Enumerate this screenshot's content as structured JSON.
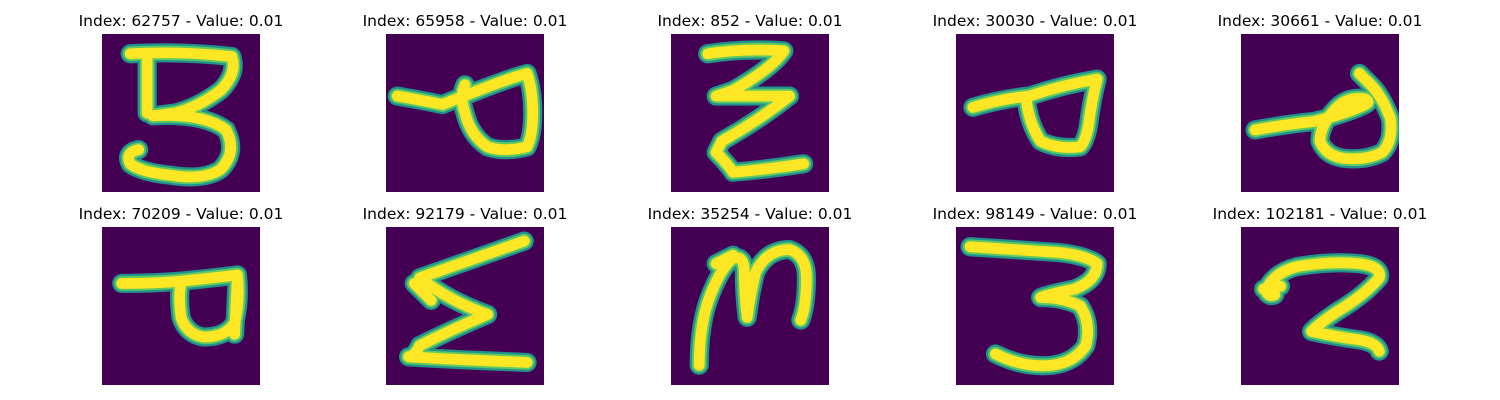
{
  "colors": {
    "background": "#440154",
    "edge": "#21918c",
    "mid": "#5ec962",
    "stroke": "#fde725"
  },
  "panels": [
    {
      "title": "Index: 62757 - Value: 0.01",
      "glyph": "3"
    },
    {
      "title": "Index: 65958 - Value: 0.01",
      "glyph": "sideways-loop"
    },
    {
      "title": "Index: 852 - Value: 0.01",
      "glyph": "zigzag"
    },
    {
      "title": "Index: 30030 - Value: 0.01",
      "glyph": "sideways-loop"
    },
    {
      "title": "Index: 30661 - Value: 0.01",
      "glyph": "sideways-loop"
    },
    {
      "title": "Index: 70209 - Value: 0.01",
      "glyph": "P"
    },
    {
      "title": "Index: 92179 - Value: 0.01",
      "glyph": "zigzag"
    },
    {
      "title": "Index: 35254 - Value: 0.01",
      "glyph": "N"
    },
    {
      "title": "Index: 98149 - Value: 0.01",
      "glyph": "3"
    },
    {
      "title": "Index: 102181 - Value: 0.01",
      "glyph": "2"
    }
  ]
}
